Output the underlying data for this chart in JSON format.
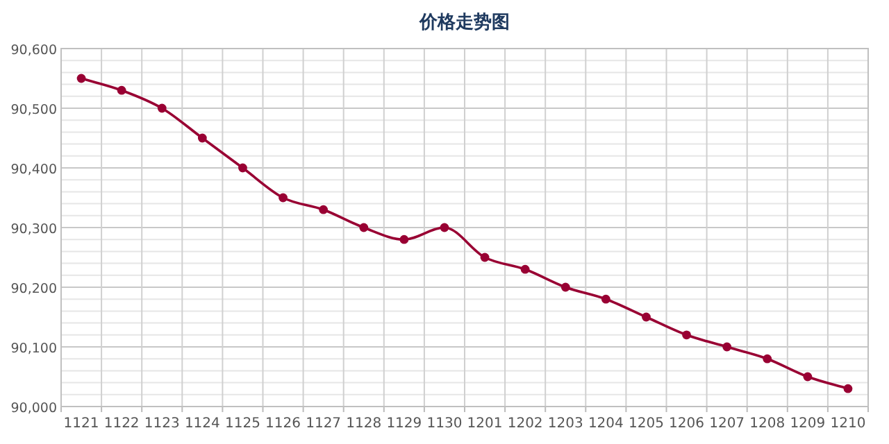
{
  "chart_data": {
    "type": "line",
    "title": "价格走势图",
    "categories": [
      "1121",
      "1122",
      "1123",
      "1124",
      "1125",
      "1126",
      "1127",
      "1128",
      "1129",
      "1130",
      "1201",
      "1202",
      "1203",
      "1204",
      "1205",
      "1206",
      "1207",
      "1208",
      "1209",
      "1210"
    ],
    "series": [
      {
        "color": "#990033",
        "values": [
          90550,
          90530,
          90500,
          90450,
          90400,
          90350,
          90330,
          90300,
          90280,
          90300,
          90250,
          90230,
          90200,
          90180,
          90150,
          90120,
          90100,
          90080,
          90050,
          90030
        ]
      }
    ],
    "ylim": [
      90000,
      90600
    ],
    "yticks": [
      {
        "value": 90000,
        "label": "90,000"
      },
      {
        "value": 90020,
        "label": null
      },
      {
        "value": 90040,
        "label": null
      },
      {
        "value": 90060,
        "label": null
      },
      {
        "value": 90080,
        "label": null
      },
      {
        "value": 90100,
        "label": "90,100"
      },
      {
        "value": 90120,
        "label": null
      },
      {
        "value": 90140,
        "label": null
      },
      {
        "value": 90160,
        "label": null
      },
      {
        "value": 90180,
        "label": null
      },
      {
        "value": 90200,
        "label": "90,200"
      },
      {
        "value": 90220,
        "label": null
      },
      {
        "value": 90240,
        "label": null
      },
      {
        "value": 90260,
        "label": null
      },
      {
        "value": 90280,
        "label": null
      },
      {
        "value": 90300,
        "label": "90,300"
      },
      {
        "value": 90320,
        "label": null
      },
      {
        "value": 90340,
        "label": null
      },
      {
        "value": 90360,
        "label": null
      },
      {
        "value": 90380,
        "label": null
      },
      {
        "value": 90400,
        "label": "90,400"
      },
      {
        "value": 90420,
        "label": null
      },
      {
        "value": 90440,
        "label": null
      },
      {
        "value": 90460,
        "label": null
      },
      {
        "value": 90480,
        "label": null
      },
      {
        "value": 90500,
        "label": "90,500"
      },
      {
        "value": 90520,
        "label": null
      },
      {
        "value": 90540,
        "label": null
      },
      {
        "value": 90560,
        "label": null
      },
      {
        "value": 90580,
        "label": null
      },
      {
        "value": 90600,
        "label": "90,600"
      }
    ],
    "grid": true,
    "marker": "circle",
    "line_style": "solid"
  }
}
